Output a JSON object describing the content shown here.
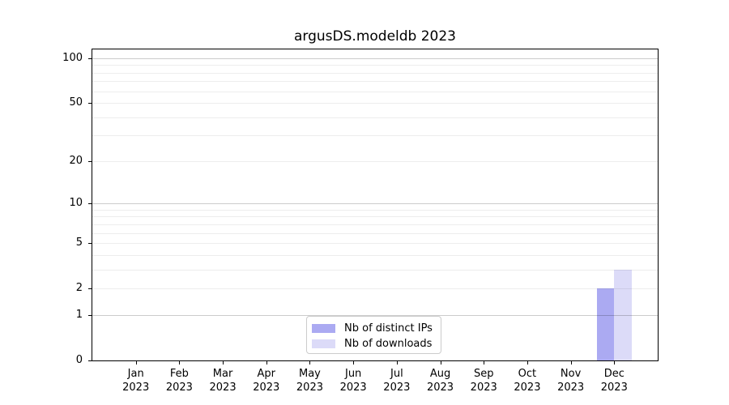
{
  "chart_data": {
    "type": "bar",
    "title": "argusDS.modeldb 2023",
    "categories": [
      {
        "month": "Jan",
        "year": "2023"
      },
      {
        "month": "Feb",
        "year": "2023"
      },
      {
        "month": "Mar",
        "year": "2023"
      },
      {
        "month": "Apr",
        "year": "2023"
      },
      {
        "month": "May",
        "year": "2023"
      },
      {
        "month": "Jun",
        "year": "2023"
      },
      {
        "month": "Jul",
        "year": "2023"
      },
      {
        "month": "Aug",
        "year": "2023"
      },
      {
        "month": "Sep",
        "year": "2023"
      },
      {
        "month": "Oct",
        "year": "2023"
      },
      {
        "month": "Nov",
        "year": "2023"
      },
      {
        "month": "Dec",
        "year": "2023"
      }
    ],
    "series": [
      {
        "name": "Nb of distinct IPs",
        "color": "#abaaf2",
        "values": [
          0,
          0,
          0,
          0,
          0,
          0,
          0,
          0,
          0,
          0,
          0,
          2
        ]
      },
      {
        "name": "Nb of downloads",
        "color": "#dcdbf8",
        "values": [
          0,
          0,
          0,
          0,
          0,
          0,
          0,
          0,
          0,
          0,
          0,
          3
        ]
      }
    ],
    "xlabel": "",
    "ylabel": "",
    "yscale": "log1p",
    "ylim": [
      0,
      114.6
    ],
    "ytick_values": [
      0,
      1,
      2,
      5,
      10,
      20,
      50,
      100
    ],
    "grid": {
      "orientation": "horizontal",
      "major_values": [
        1,
        10,
        100
      ],
      "minor_values": [
        2,
        3,
        4,
        5,
        6,
        7,
        8,
        9,
        20,
        30,
        40,
        50,
        60,
        70,
        80,
        90
      ],
      "major_color": "rgba(0,0,0,0.20)",
      "minor_color": "rgba(0,0,0,0.07)"
    },
    "bar_width_fraction": 0.4,
    "legend_position": "lower center"
  }
}
